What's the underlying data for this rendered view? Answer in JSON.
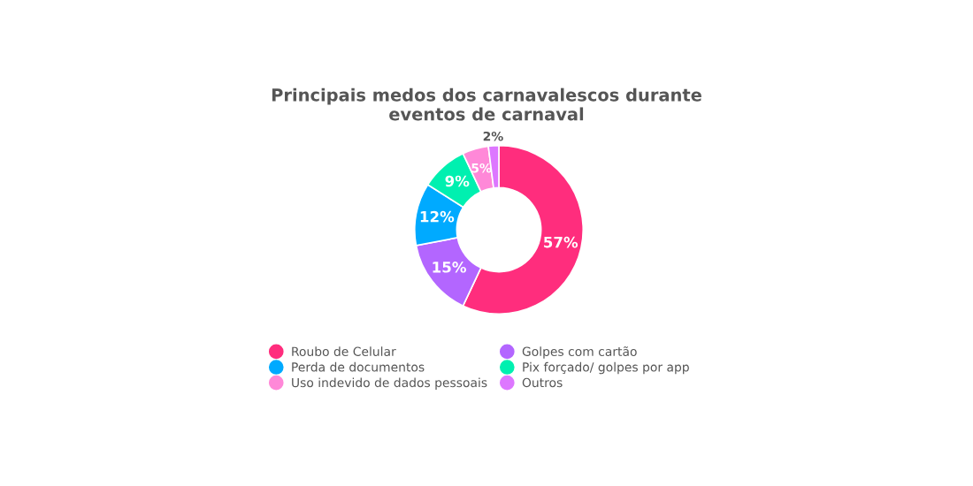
{
  "chart_data": {
    "type": "donut",
    "title": "Principais medos dos carnavalescos durante eventos de carnaval",
    "categories": [
      "Roubo de Celular",
      "Golpes com cartão",
      "Perda de documentos",
      "Pix forçado/ golpes por app",
      "Uso indevido de dados pessoais",
      "Outros"
    ],
    "values": [
      57,
      15,
      12,
      9,
      5,
      2
    ],
    "value_labels": [
      "57%",
      "15%",
      "12%",
      "9%",
      "5%",
      "2%"
    ],
    "colors": [
      "#ff2d7d",
      "#b366ff",
      "#00aaff",
      "#00f0b0",
      "#ff88d8",
      "#dd77ff"
    ],
    "legend": "bottom"
  }
}
